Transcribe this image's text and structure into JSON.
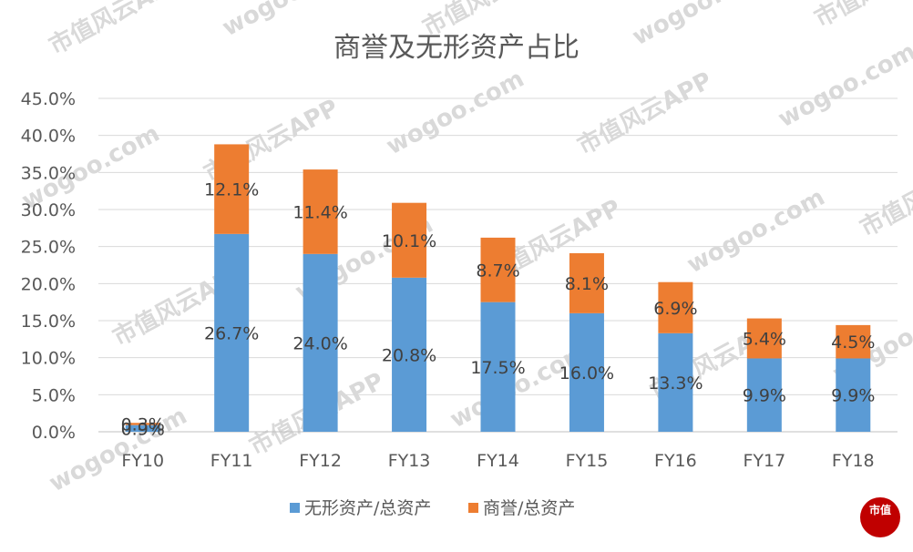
{
  "chart_data": {
    "type": "bar",
    "stacked": true,
    "title": "商誉及无形资产占比",
    "categories": [
      "FY10",
      "FY11",
      "FY12",
      "FY13",
      "FY14",
      "FY15",
      "FY16",
      "FY17",
      "FY18"
    ],
    "series": [
      {
        "name": "无形资产/总资产",
        "color": "#5b9bd5",
        "values": [
          0.9,
          26.7,
          24.0,
          20.8,
          17.5,
          16.0,
          13.3,
          9.9,
          9.9
        ],
        "labels": [
          "0.9%",
          "26.7%",
          "24.0%",
          "20.8%",
          "17.5%",
          "16.0%",
          "13.3%",
          "9.9%",
          "9.9%"
        ]
      },
      {
        "name": "商誉/总资产",
        "color": "#ed7d31",
        "values": [
          0.3,
          12.1,
          11.4,
          10.1,
          8.7,
          8.1,
          6.9,
          5.4,
          4.5
        ],
        "labels": [
          "0.3%",
          "12.1%",
          "11.4%",
          "10.1%",
          "8.7%",
          "8.1%",
          "6.9%",
          "5.4%",
          "4.5%"
        ]
      }
    ],
    "y_ticks": [
      "0.0%",
      "5.0%",
      "10.0%",
      "15.0%",
      "20.0%",
      "25.0%",
      "30.0%",
      "35.0%",
      "40.0%",
      "45.0%"
    ],
    "ylim": [
      0,
      45
    ],
    "grid": true,
    "legend": "bottom"
  },
  "watermark": {
    "text_app": "市值风云APP",
    "text_url": "wogoo.com",
    "logo_text": "市值"
  }
}
